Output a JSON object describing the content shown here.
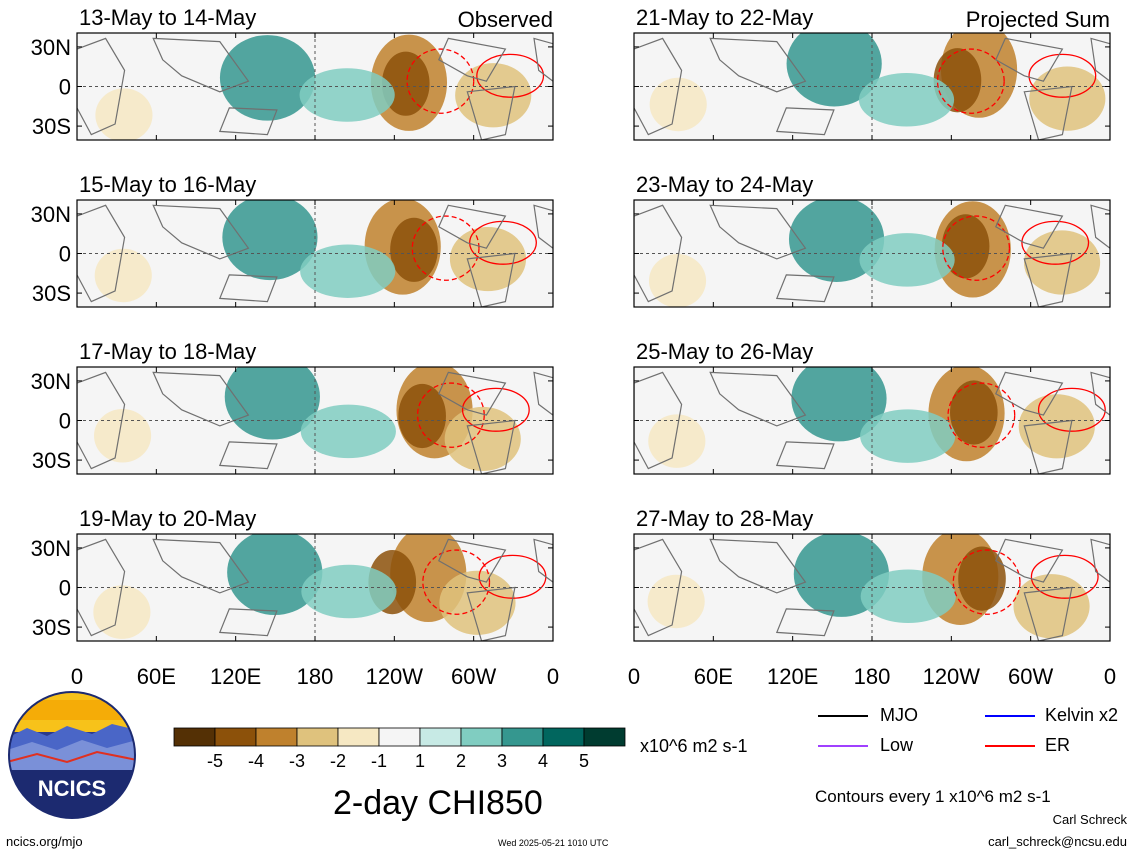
{
  "chart_data": {
    "type": "heatmap",
    "variable_title": "2-day CHI850",
    "units": "x10^6 m2 s-1",
    "colorbar": {
      "ticks": [
        "-5",
        "-4",
        "-3",
        "-2",
        "-1",
        "1",
        "2",
        "3",
        "4",
        "5"
      ],
      "colors": [
        "#543005",
        "#8c510a",
        "#bf812d",
        "#dfc27d",
        "#f6e8c3",
        "#f5f5f5",
        "#c7eae5",
        "#80cdc1",
        "#35978f",
        "#01665e",
        "#003c30"
      ]
    },
    "x_ticks": [
      "0",
      "60E",
      "120E",
      "180",
      "120W",
      "60W",
      "0"
    ],
    "y_ticks": [
      "30N",
      "0",
      "30S"
    ],
    "panels": [
      {
        "label": "13-May to 14-May",
        "tag": "Observed"
      },
      {
        "label": "15-May to 16-May",
        "tag": ""
      },
      {
        "label": "17-May to 18-May",
        "tag": ""
      },
      {
        "label": "19-May to 20-May",
        "tag": ""
      },
      {
        "label": "21-May to 22-May",
        "tag": "Projected Sum"
      },
      {
        "label": "23-May to 24-May",
        "tag": ""
      },
      {
        "label": "25-May to 26-May",
        "tag": ""
      },
      {
        "label": "27-May to 28-May",
        "tag": ""
      }
    ],
    "legend": [
      {
        "name": "MJO",
        "color": "#000000"
      },
      {
        "name": "Kelvin x2",
        "color": "#0000ff"
      },
      {
        "name": "Low",
        "color": "#a040ff"
      },
      {
        "name": "ER",
        "color": "#ff0000"
      }
    ],
    "contour_note": "Contours every 1 x10^6 m2 s-1"
  },
  "logo_text": "NCICS",
  "footer": {
    "left": "ncics.org/mjo",
    "timestamp": "Wed 2025-05-21 1010 UTC",
    "author": "Carl Schreck",
    "email": "carl_schreck@ncsu.edu"
  }
}
